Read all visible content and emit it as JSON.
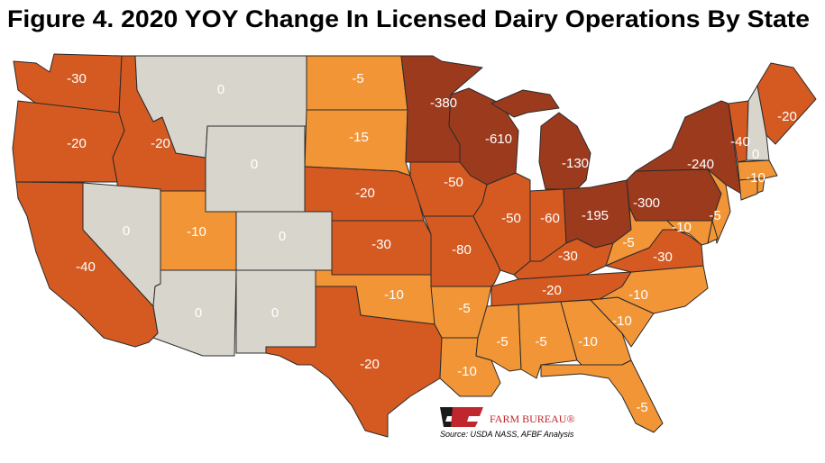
{
  "title": "Figure 4. 2020 YOY Change In Licensed Dairy Operations By State",
  "logo": "FARM BUREAU®",
  "source": "Source:  USDA NASS, AFBF Analysis",
  "regions": [
    {
      "value": -30,
      "color": "#d45a21"
    },
    {
      "value": -20,
      "color": "#d45a21"
    },
    {
      "value": -40,
      "color": "#d45a21"
    },
    {
      "value": -20,
      "color": "#d45a21"
    },
    {
      "value": 0,
      "color": "#d8d6cc"
    },
    {
      "value": 0,
      "color": "#d8d6cc"
    },
    {
      "value": 0,
      "color": "#d8d6cc"
    },
    {
      "value": -10,
      "color": "#f29536"
    },
    {
      "value": 0,
      "color": "#d8d6cc"
    },
    {
      "value": 0,
      "color": "#d8d6cc"
    },
    {
      "value": 0,
      "color": "#d8d6cc"
    },
    {
      "value": -5,
      "color": "#f29536"
    },
    {
      "value": -15,
      "color": "#f29536"
    },
    {
      "value": -20,
      "color": "#d45a21"
    },
    {
      "value": -30,
      "color": "#d45a21"
    },
    {
      "value": -10,
      "color": "#f29536"
    },
    {
      "value": -20,
      "color": "#d45a21"
    },
    {
      "value": -380,
      "color": "#9c3a1e"
    },
    {
      "value": -50,
      "color": "#d45a21"
    },
    {
      "value": -80,
      "color": "#d45a21"
    },
    {
      "value": -5,
      "color": "#f29536"
    },
    {
      "value": -10,
      "color": "#f29536"
    },
    {
      "value": -610,
      "color": "#9c3a1e"
    },
    {
      "value": -50,
      "color": "#d45a21"
    },
    {
      "value": -130,
      "color": "#9c3a1e"
    },
    {
      "value": -60,
      "color": "#d45a21"
    },
    {
      "value": -195,
      "color": "#9c3a1e"
    },
    {
      "value": -30,
      "color": "#d45a21"
    },
    {
      "value": -20,
      "color": "#d45a21"
    },
    {
      "value": -5,
      "color": "#f29536"
    },
    {
      "value": -5,
      "color": "#f29536"
    },
    {
      "value": -10,
      "color": "#f29536"
    },
    {
      "value": -5,
      "color": "#f29536"
    },
    {
      "value": -10,
      "color": "#f29536"
    },
    {
      "value": -10,
      "color": "#f29536"
    },
    {
      "value": -30,
      "color": "#d45a21"
    },
    {
      "value": -5,
      "color": "#f29536"
    },
    {
      "value": -300,
      "color": "#9c3a1e"
    },
    {
      "value": -240,
      "color": "#9c3a1e"
    },
    {
      "value": -10,
      "color": "#f29536"
    },
    {
      "value": -5,
      "color": "#f29536"
    },
    {
      "value": -40,
      "color": "#d45a21"
    },
    {
      "value": 0,
      "color": "#d8d6cc"
    },
    {
      "value": -20,
      "color": "#d45a21"
    },
    {
      "value": -10,
      "color": "#f29536"
    }
  ]
}
